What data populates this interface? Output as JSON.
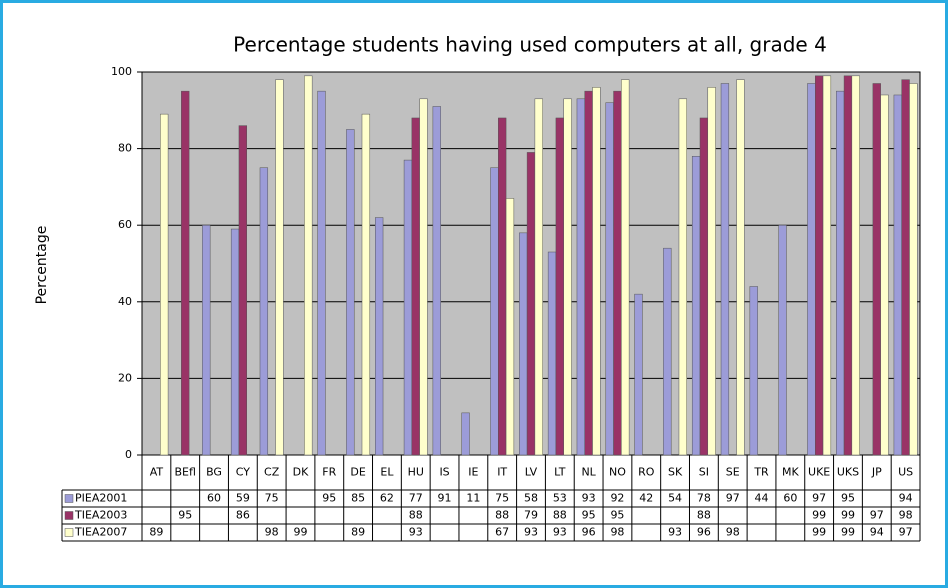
{
  "chart_data": {
    "type": "bar",
    "title": "Percentage students having used computers at all, grade 4",
    "y_label": "Percentage",
    "categories": [
      "AT",
      "BEfl",
      "BG",
      "CY",
      "CZ",
      "DK",
      "FR",
      "DE",
      "EL",
      "HU",
      "IS",
      "IE",
      "IT",
      "LV",
      "LT",
      "NL",
      "NO",
      "RO",
      "SK",
      "SI",
      "SE",
      "TR",
      "MK",
      "UKE",
      "UKS",
      "JP",
      "US"
    ],
    "series": [
      {
        "name": "PIEA2001",
        "color": "#9c9cd8",
        "values": [
          null,
          null,
          60,
          59,
          75,
          null,
          95,
          85,
          62,
          77,
          91,
          11,
          75,
          58,
          53,
          93,
          92,
          42,
          54,
          78,
          97,
          44,
          60,
          97,
          95,
          null,
          94
        ]
      },
      {
        "name": "TIEA2003",
        "color": "#993366",
        "values": [
          null,
          95,
          null,
          86,
          null,
          null,
          null,
          null,
          null,
          88,
          null,
          null,
          88,
          79,
          88,
          95,
          95,
          null,
          null,
          88,
          null,
          null,
          null,
          99,
          99,
          97,
          98
        ]
      },
      {
        "name": "TIEA2007",
        "color": "#ffffcc",
        "values": [
          89,
          null,
          null,
          null,
          98,
          99,
          null,
          89,
          null,
          93,
          null,
          null,
          67,
          93,
          93,
          96,
          98,
          null,
          93,
          96,
          98,
          null,
          null,
          99,
          99,
          94,
          97
        ]
      }
    ],
    "ylim": [
      0,
      100
    ],
    "yticks": [
      0,
      20,
      40,
      60,
      80,
      100
    ],
    "grid": true
  }
}
